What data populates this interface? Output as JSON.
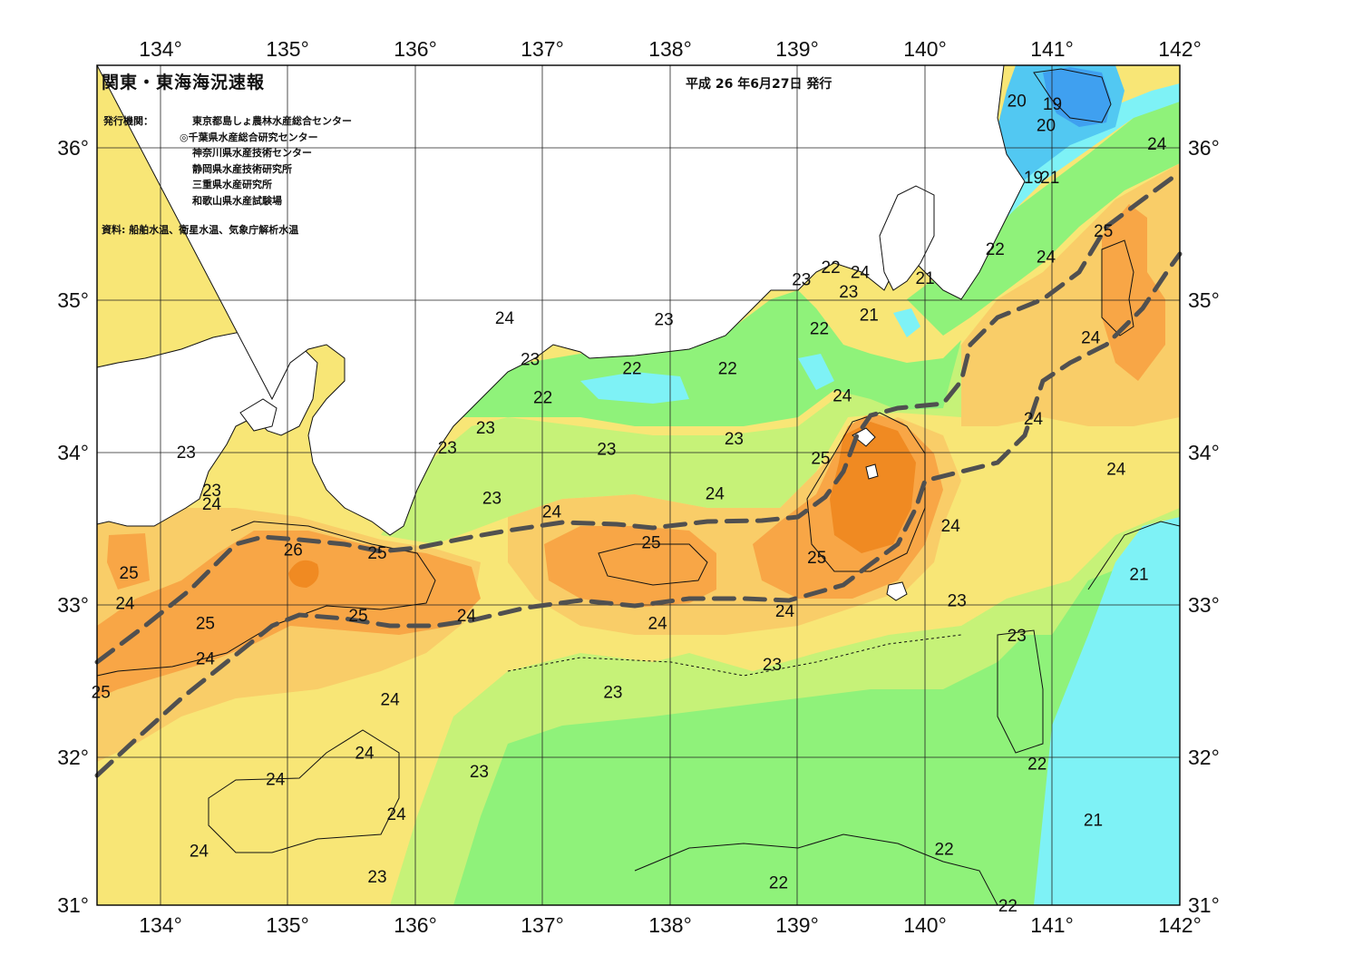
{
  "header": {
    "title": "関東・東海海況速報",
    "issue_date": "平成 26 年6月27日 発行",
    "issuers_label": "発行機関：",
    "issuers": [
      "東京都島しょ農林水産総合センター",
      "◎千葉県水産総合研究センター",
      "神奈川県水産技術センター",
      "静岡県水産技術研究所",
      "三重県水産研究所",
      "和歌山県水産試験場"
    ],
    "source": "資料: 船舶水温、衛星水温、気象庁解析水温"
  },
  "map": {
    "projection": "lat-lon grid",
    "lon_range": [
      133.5,
      142
    ],
    "lat_range": [
      31,
      36.5
    ],
    "lon_ticks": [
      "134°",
      "135°",
      "136°",
      "137°",
      "138°",
      "139°",
      "140°",
      "141°",
      "142°"
    ],
    "lat_ticks": [
      "31°",
      "32°",
      "33°",
      "34°",
      "35°",
      "36°"
    ],
    "variable": "sea surface temperature (°C)",
    "colors": {
      "t19": "#3fa0f0",
      "t20": "#52c8f2",
      "t21": "#7ef2f6",
      "t22": "#8ff27a",
      "t23": "#c6f278",
      "t24": "#f8e676",
      "t24b": "#f9cd68",
      "t25": "#f8a646",
      "t26": "#f08a22",
      "land": "#ffffff",
      "kuroshio_axis": "#505050"
    },
    "isotherm_labels": [
      {
        "text": "23",
        "lon": 134.2,
        "lat": 33.97
      },
      {
        "text": "23",
        "lon": 134.4,
        "lat": 33.72
      },
      {
        "text": "24",
        "lon": 134.4,
        "lat": 33.63
      },
      {
        "text": "25",
        "lon": 133.75,
        "lat": 33.18
      },
      {
        "text": "24",
        "lon": 133.72,
        "lat": 32.98
      },
      {
        "text": "25",
        "lon": 134.35,
        "lat": 32.85
      },
      {
        "text": "24",
        "lon": 134.35,
        "lat": 32.62
      },
      {
        "text": "25",
        "lon": 133.53,
        "lat": 32.4
      },
      {
        "text": "26",
        "lon": 135.04,
        "lat": 33.33
      },
      {
        "text": "25",
        "lon": 135.7,
        "lat": 33.31
      },
      {
        "text": "25",
        "lon": 135.55,
        "lat": 32.9
      },
      {
        "text": "24",
        "lon": 136.4,
        "lat": 32.9
      },
      {
        "text": "24",
        "lon": 135.8,
        "lat": 32.35
      },
      {
        "text": "24",
        "lon": 135.6,
        "lat": 32.0
      },
      {
        "text": "24",
        "lon": 134.9,
        "lat": 31.83
      },
      {
        "text": "24",
        "lon": 135.85,
        "lat": 31.6
      },
      {
        "text": "24",
        "lon": 134.3,
        "lat": 31.36
      },
      {
        "text": "23",
        "lon": 135.7,
        "lat": 31.19
      },
      {
        "text": "23",
        "lon": 136.6,
        "lat": 33.67
      },
      {
        "text": "24",
        "lon": 137.07,
        "lat": 33.58
      },
      {
        "text": "25",
        "lon": 137.85,
        "lat": 33.38
      },
      {
        "text": "24",
        "lon": 137.9,
        "lat": 32.85
      },
      {
        "text": "23",
        "lon": 137.55,
        "lat": 32.4
      },
      {
        "text": "23",
        "lon": 136.5,
        "lat": 31.88
      },
      {
        "text": "23",
        "lon": 136.25,
        "lat": 34.0
      },
      {
        "text": "23",
        "lon": 136.55,
        "lat": 34.13
      },
      {
        "text": "22",
        "lon": 137.0,
        "lat": 34.33
      },
      {
        "text": "23",
        "lon": 136.9,
        "lat": 34.58
      },
      {
        "text": "24",
        "lon": 136.7,
        "lat": 34.85
      },
      {
        "text": "23",
        "lon": 137.95,
        "lat": 34.84
      },
      {
        "text": "22",
        "lon": 137.7,
        "lat": 34.52
      },
      {
        "text": "22",
        "lon": 138.45,
        "lat": 34.52
      },
      {
        "text": "23",
        "lon": 137.5,
        "lat": 33.99
      },
      {
        "text": "23",
        "lon": 138.5,
        "lat": 34.06
      },
      {
        "text": "24",
        "lon": 138.35,
        "lat": 33.7
      },
      {
        "text": "24",
        "lon": 139.35,
        "lat": 34.34
      },
      {
        "text": "25",
        "lon": 139.18,
        "lat": 33.93
      },
      {
        "text": "25",
        "lon": 139.15,
        "lat": 33.28
      },
      {
        "text": "24",
        "lon": 138.9,
        "lat": 32.93
      },
      {
        "text": "23",
        "lon": 138.8,
        "lat": 32.58
      },
      {
        "text": "24",
        "lon": 140.2,
        "lat": 33.49
      },
      {
        "text": "23",
        "lon": 140.25,
        "lat": 33.0
      },
      {
        "text": "23",
        "lon": 140.72,
        "lat": 32.77
      },
      {
        "text": "23",
        "lon": 139.03,
        "lat": 35.1
      },
      {
        "text": "22",
        "lon": 139.26,
        "lat": 35.18
      },
      {
        "text": "24",
        "lon": 139.49,
        "lat": 35.15
      },
      {
        "text": "23",
        "lon": 139.4,
        "lat": 35.02
      },
      {
        "text": "22",
        "lon": 139.17,
        "lat": 34.78
      },
      {
        "text": "21",
        "lon": 139.56,
        "lat": 34.87
      },
      {
        "text": "21",
        "lon": 140.0,
        "lat": 35.11
      },
      {
        "text": "22",
        "lon": 140.55,
        "lat": 35.3
      },
      {
        "text": "24",
        "lon": 140.95,
        "lat": 35.25
      },
      {
        "text": "25",
        "lon": 141.4,
        "lat": 35.42
      },
      {
        "text": "24",
        "lon": 141.3,
        "lat": 34.72
      },
      {
        "text": "24",
        "lon": 140.85,
        "lat": 34.19
      },
      {
        "text": "24",
        "lon": 141.5,
        "lat": 33.86
      },
      {
        "text": "24",
        "lon": 141.82,
        "lat": 35.99
      },
      {
        "text": "20",
        "lon": 140.72,
        "lat": 36.27
      },
      {
        "text": "19",
        "lon": 141.0,
        "lat": 36.25
      },
      {
        "text": "20",
        "lon": 140.95,
        "lat": 36.11
      },
      {
        "text": "19",
        "lon": 140.85,
        "lat": 35.77
      },
      {
        "text": "21",
        "lon": 140.98,
        "lat": 35.77
      },
      {
        "text": "21",
        "lon": 141.68,
        "lat": 33.17
      },
      {
        "text": "22",
        "lon": 140.88,
        "lat": 31.93
      },
      {
        "text": "21",
        "lon": 141.32,
        "lat": 31.56
      },
      {
        "text": "22",
        "lon": 140.15,
        "lat": 31.37
      },
      {
        "text": "22",
        "lon": 138.85,
        "lat": 31.15
      },
      {
        "text": "22",
        "lon": 140.65,
        "lat": 31.0
      }
    ]
  }
}
